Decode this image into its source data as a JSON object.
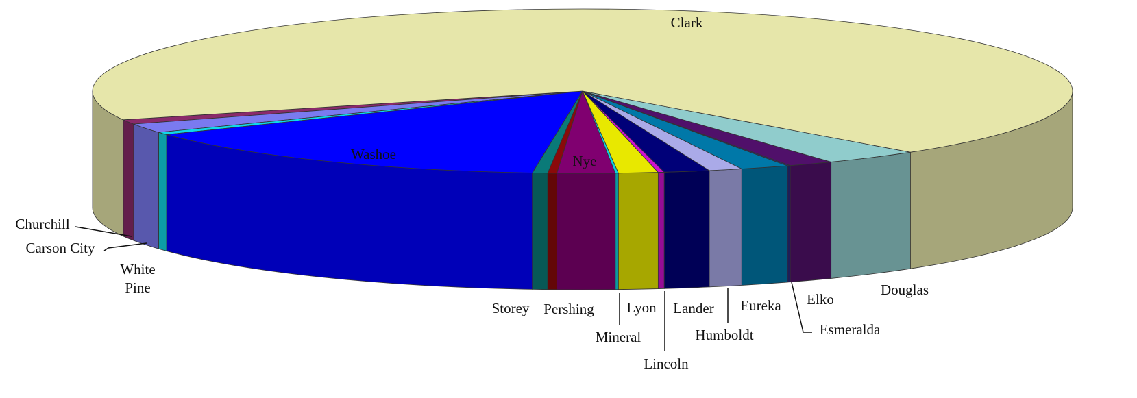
{
  "chart_data": {
    "type": "pie3d",
    "categories": [
      "Churchill",
      "Carson City",
      "White Pine",
      "Washoe",
      "Storey",
      "Pershing",
      "Nye",
      "Mineral",
      "Lyon",
      "Lincoln",
      "Lander",
      "Humboldt",
      "Eureka",
      "Esmeralda",
      "Elko",
      "Douglas",
      "Clark"
    ],
    "values": [
      0.9,
      1.8,
      0.5,
      14.5,
      0.5,
      0.3,
      1.9,
      0.1,
      1.3,
      0.2,
      1.5,
      1.1,
      1.6,
      0.1,
      1.5,
      3.2,
      69
    ],
    "colors": [
      "#8a2a6a",
      "#7a7af0",
      "#10d8e8",
      "#0000ff",
      "#0a7a78",
      "#8a0a0a",
      "#800070",
      "#10d0e0",
      "#e8e800",
      "#d010d0",
      "#000078",
      "#aaaae8",
      "#0078a8",
      "#2a2a7a",
      "#50106a",
      "#90cccc",
      "#e6e6aa"
    ]
  }
}
